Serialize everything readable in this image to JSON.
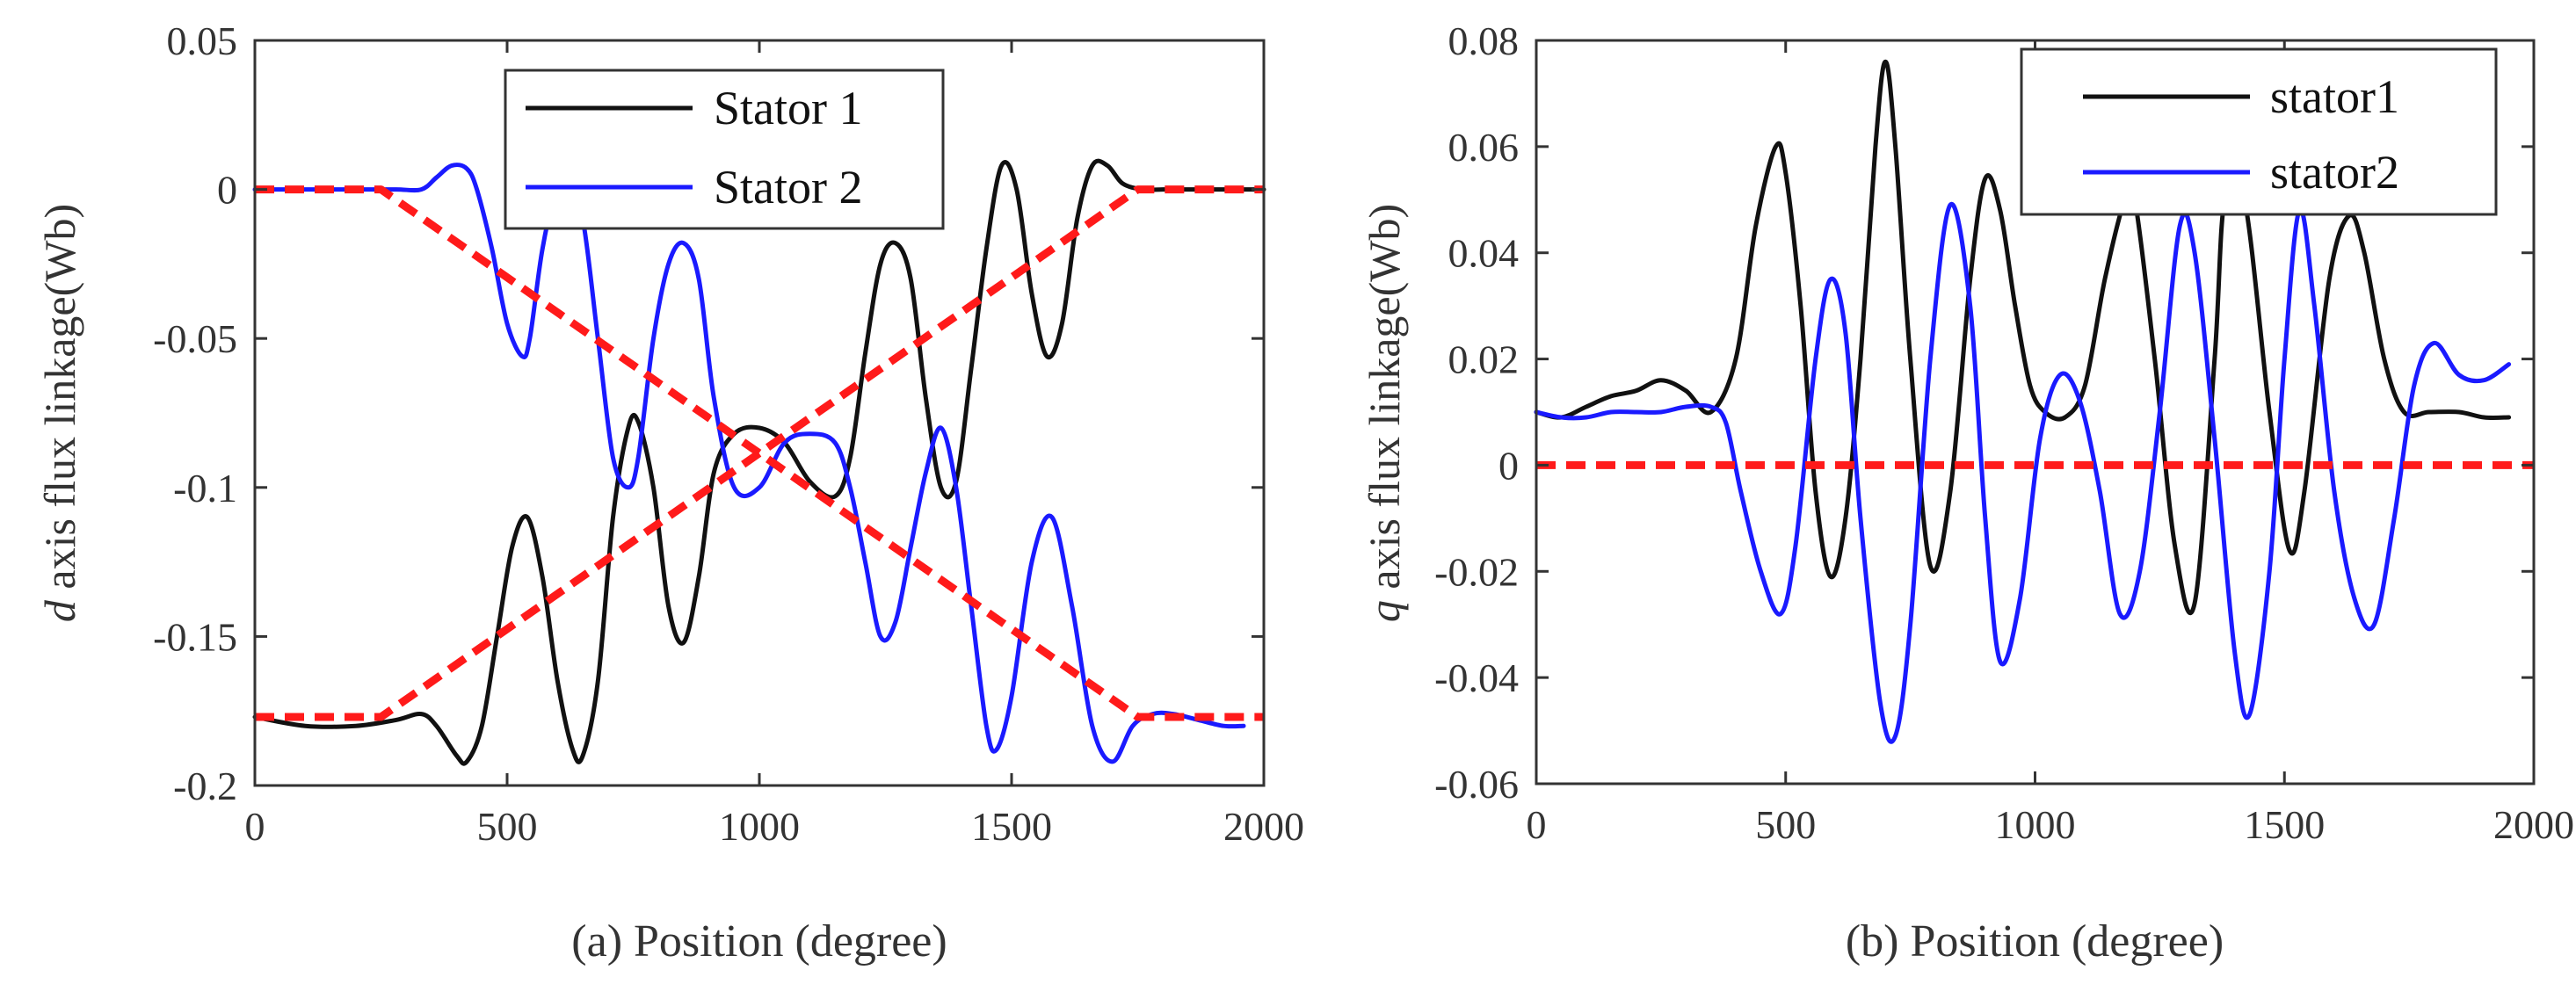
{
  "chart_data": [
    {
      "id": "a",
      "type": "line",
      "ylabel_italic": "d",
      "ylabel_rest": " axis flux linkage(Wb)",
      "xlabel": "(a) Position (degree)",
      "xlim": [
        0,
        2000
      ],
      "ylim": [
        -0.2,
        0.05
      ],
      "xticks": [
        0,
        500,
        1000,
        1500,
        2000
      ],
      "xtick_labels": [
        "0",
        "500",
        "1000",
        "1500",
        "2000"
      ],
      "yticks": [
        0.05,
        0,
        -0.05,
        -0.1,
        -0.15,
        -0.2
      ],
      "ytick_labels": [
        "0.05",
        "0",
        "-0.05",
        "-0.1",
        "-0.15",
        "-0.2"
      ],
      "legend": {
        "position": "top-right",
        "entries": [
          "Stator 1",
          "Stator 2"
        ]
      },
      "series": [
        {
          "name": "Stator 1",
          "color": "#111111",
          "x": [
            0,
            100,
            200,
            280,
            330,
            360,
            400,
            420,
            450,
            480,
            510,
            540,
            570,
            600,
            630,
            650,
            680,
            710,
            740,
            760,
            790,
            820,
            850,
            880,
            910,
            950,
            1000,
            1050,
            1100,
            1150,
            1180,
            1210,
            1240,
            1270,
            1300,
            1330,
            1360,
            1390,
            1420,
            1450,
            1480,
            1510,
            1540,
            1570,
            1600,
            1630,
            1660,
            1690,
            1720,
            1760,
            1800,
            1850,
            1900,
            1950,
            2000
          ],
          "values": [
            -0.177,
            -0.18,
            -0.18,
            -0.178,
            -0.176,
            -0.18,
            -0.19,
            -0.192,
            -0.18,
            -0.15,
            -0.12,
            -0.11,
            -0.13,
            -0.165,
            -0.188,
            -0.19,
            -0.165,
            -0.11,
            -0.08,
            -0.078,
            -0.1,
            -0.14,
            -0.152,
            -0.13,
            -0.095,
            -0.082,
            -0.08,
            -0.085,
            -0.098,
            -0.103,
            -0.09,
            -0.055,
            -0.025,
            -0.018,
            -0.03,
            -0.07,
            -0.1,
            -0.098,
            -0.06,
            -0.02,
            0.008,
            0.0,
            -0.035,
            -0.056,
            -0.045,
            -0.01,
            0.008,
            0.008,
            0.002,
            0.0,
            0.0,
            0.0,
            0.0,
            0.0,
            0.0
          ]
        },
        {
          "name": "Stator 2",
          "color": "#1a1aff",
          "x": [
            0,
            100,
            200,
            280,
            330,
            360,
            390,
            420,
            440,
            470,
            500,
            530,
            545,
            570,
            600,
            620,
            650,
            680,
            710,
            740,
            760,
            790,
            820,
            850,
            880,
            910,
            950,
            1000,
            1050,
            1100,
            1150,
            1180,
            1210,
            1240,
            1270,
            1300,
            1330,
            1360,
            1390,
            1420,
            1450,
            1470,
            1500,
            1540,
            1580,
            1620,
            1660,
            1700,
            1740,
            1780,
            1820,
            1870,
            1920,
            1960
          ],
          "values": [
            0.0,
            0.0,
            0.0,
            0.0,
            0.0,
            0.004,
            0.008,
            0.007,
            0.0,
            -0.02,
            -0.045,
            -0.056,
            -0.05,
            -0.02,
            0.002,
            0.003,
            -0.01,
            -0.05,
            -0.09,
            -0.1,
            -0.09,
            -0.05,
            -0.025,
            -0.018,
            -0.03,
            -0.07,
            -0.1,
            -0.1,
            -0.085,
            -0.082,
            -0.085,
            -0.1,
            -0.125,
            -0.15,
            -0.145,
            -0.12,
            -0.095,
            -0.08,
            -0.1,
            -0.14,
            -0.18,
            -0.188,
            -0.17,
            -0.125,
            -0.11,
            -0.14,
            -0.18,
            -0.192,
            -0.18,
            -0.176,
            -0.176,
            -0.178,
            -0.18,
            -0.18
          ]
        },
        {
          "name": "avg-dashed-1",
          "color": "#ff1a1a",
          "dashed": true,
          "x": [
            0,
            250,
            1750,
            2000
          ],
          "values": [
            0.0,
            0.0,
            -0.177,
            -0.177
          ]
        },
        {
          "name": "avg-dashed-2",
          "color": "#ff1a1a",
          "dashed": true,
          "x": [
            0,
            250,
            1750,
            2000
          ],
          "values": [
            -0.177,
            -0.177,
            0.0,
            0.0
          ]
        }
      ]
    },
    {
      "id": "b",
      "type": "line",
      "ylabel_italic": "q",
      "ylabel_rest": " axis flux linkage(Wb)",
      "xlabel": "(b) Position (degree)",
      "xlim": [
        0,
        2000
      ],
      "ylim": [
        -0.06,
        0.08
      ],
      "xticks": [
        0,
        500,
        1000,
        1500,
        2000
      ],
      "xtick_labels": [
        "0",
        "500",
        "1000",
        "1500",
        "2000"
      ],
      "yticks": [
        0.08,
        0.06,
        0.04,
        0.02,
        0,
        -0.02,
        -0.04,
        -0.06
      ],
      "ytick_labels": [
        "0.08",
        "0.06",
        "0.04",
        "0.02",
        "0",
        "-0.02",
        "-0.04",
        "-0.06"
      ],
      "legend": {
        "position": "top-right",
        "entries": [
          "stator1",
          "stator2"
        ]
      },
      "series": [
        {
          "name": "stator1",
          "color": "#111111",
          "x": [
            0,
            50,
            100,
            150,
            200,
            250,
            300,
            350,
            400,
            440,
            480,
            500,
            530,
            560,
            590,
            620,
            650,
            680,
            700,
            720,
            750,
            790,
            830,
            870,
            900,
            930,
            960,
            990,
            1020,
            1060,
            1100,
            1140,
            1180,
            1200,
            1240,
            1280,
            1320,
            1360,
            1380,
            1420,
            1470,
            1510,
            1540,
            1590,
            1630,
            1660,
            1700,
            1740,
            1790,
            1850,
            1900,
            1950
          ],
          "values": [
            0.01,
            0.009,
            0.011,
            0.013,
            0.014,
            0.016,
            0.014,
            0.01,
            0.02,
            0.045,
            0.06,
            0.055,
            0.03,
            -0.005,
            -0.021,
            -0.01,
            0.02,
            0.06,
            0.076,
            0.06,
            0.02,
            -0.019,
            -0.005,
            0.035,
            0.054,
            0.048,
            0.03,
            0.015,
            0.01,
            0.009,
            0.015,
            0.035,
            0.05,
            0.05,
            0.02,
            -0.015,
            -0.026,
            0.02,
            0.05,
            0.05,
            0.01,
            -0.016,
            -0.005,
            0.035,
            0.047,
            0.04,
            0.02,
            0.01,
            0.01,
            0.01,
            0.009,
            0.009
          ]
        },
        {
          "name": "stator2",
          "color": "#1a1aff",
          "x": [
            0,
            50,
            100,
            150,
            200,
            250,
            300,
            350,
            380,
            410,
            450,
            490,
            520,
            560,
            590,
            620,
            650,
            690,
            720,
            750,
            790,
            830,
            870,
            900,
            930,
            970,
            1010,
            1050,
            1090,
            1130,
            1170,
            1210,
            1250,
            1290,
            1320,
            1360,
            1400,
            1430,
            1470,
            1500,
            1530,
            1560,
            1600,
            1640,
            1680,
            1720,
            1760,
            1800,
            1850,
            1900,
            1950
          ],
          "values": [
            0.01,
            0.009,
            0.009,
            0.01,
            0.01,
            0.01,
            0.011,
            0.011,
            0.008,
            -0.005,
            -0.02,
            -0.028,
            -0.015,
            0.02,
            0.035,
            0.025,
            -0.01,
            -0.045,
            -0.051,
            -0.03,
            0.02,
            0.049,
            0.03,
            -0.01,
            -0.037,
            -0.025,
            0.005,
            0.017,
            0.012,
            -0.005,
            -0.028,
            -0.02,
            0.01,
            0.045,
            0.04,
            0.005,
            -0.035,
            -0.047,
            -0.02,
            0.02,
            0.048,
            0.03,
            -0.005,
            -0.025,
            -0.03,
            -0.01,
            0.015,
            0.023,
            0.017,
            0.016,
            0.019
          ]
        },
        {
          "name": "zero-dashed",
          "color": "#ff1a1a",
          "dashed": true,
          "x": [
            0,
            2000
          ],
          "values": [
            0.0,
            0.0
          ]
        }
      ]
    }
  ]
}
